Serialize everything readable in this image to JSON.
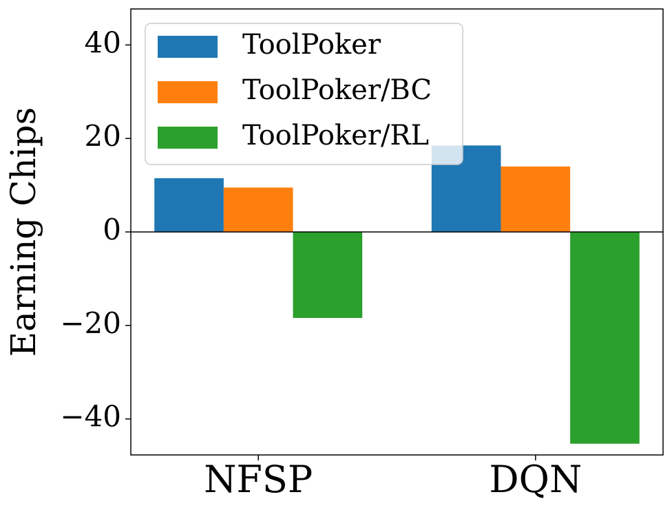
{
  "chart_data": {
    "type": "bar",
    "y_label": "Earning Chips",
    "categories": [
      "NFSP",
      "DQN"
    ],
    "series": [
      {
        "name": "ToolPoker",
        "color": "#1f77b4",
        "values": [
          11.5,
          18.5
        ]
      },
      {
        "name": "ToolPoker/BC",
        "color": "#ff7f0e",
        "values": [
          9.5,
          14.0
        ]
      },
      {
        "name": "ToolPoker/RL",
        "color": "#2ca02c",
        "values": [
          -18.4,
          -45.3
        ]
      }
    ],
    "ylim": [
      -47.7,
      47.7
    ],
    "yticks": [
      {
        "value": -40,
        "label": "−40"
      },
      {
        "value": -20,
        "label": "−20"
      },
      0,
      20,
      40
    ],
    "zero_line": true,
    "legend": "upper left"
  }
}
